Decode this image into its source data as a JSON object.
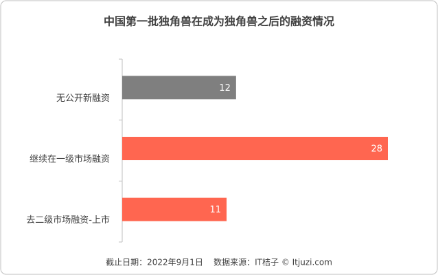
{
  "chart_data": {
    "type": "bar",
    "orientation": "horizontal",
    "title": "中国第一批独角兽在成为独角兽之后的融资情况",
    "categories": [
      "无公开新融资",
      "继续在一级市场融资",
      "去二级市场融资-上市"
    ],
    "values": [
      12,
      28,
      11
    ],
    "colors": [
      "#7f7f7f",
      "#ff6650",
      "#ff6650"
    ],
    "footnote": "截止日期：2022年9月1日    数据来源：IT桔子 © Itjuzi.com"
  }
}
